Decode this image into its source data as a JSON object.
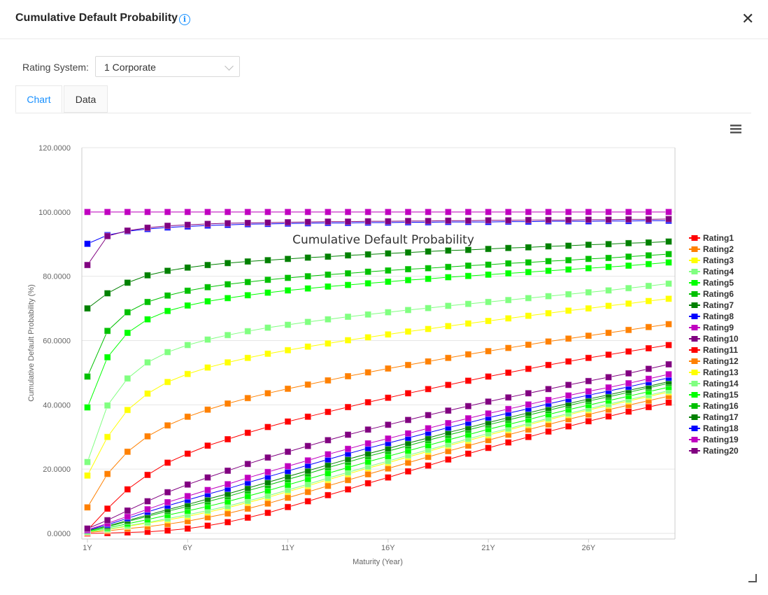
{
  "header": {
    "title": "Cumulative Default Probability",
    "info_icon": "info-circle-icon",
    "close_icon": "close-icon"
  },
  "filter": {
    "label": "Rating System:",
    "selected": "1 Corporate"
  },
  "tabs": [
    {
      "label": "Chart",
      "active": true
    },
    {
      "label": "Data",
      "active": false
    }
  ],
  "chart_data": {
    "type": "line",
    "title": "Cumulative Default Probability",
    "xlabel": "Maturity (Year)",
    "ylabel": "Cumulative Default Probability (%)",
    "ylim": [
      0,
      120
    ],
    "yticks": [
      "0.0000",
      "20.0000",
      "40.0000",
      "60.0000",
      "80.0000",
      "100.0000",
      "120.0000"
    ],
    "ytick_values": [
      0,
      20,
      40,
      60,
      80,
      100,
      120
    ],
    "x": [
      "1Y",
      "2Y",
      "3Y",
      "4Y",
      "5Y",
      "6Y",
      "7Y",
      "8Y",
      "9Y",
      "10Y",
      "11Y",
      "12Y",
      "13Y",
      "14Y",
      "15Y",
      "16Y",
      "17Y",
      "18Y",
      "19Y",
      "20Y",
      "21Y",
      "22Y",
      "23Y",
      "24Y",
      "25Y",
      "26Y",
      "27Y",
      "28Y",
      "29Y",
      "30Y"
    ],
    "xticks": [
      "1Y",
      "6Y",
      "11Y",
      "16Y",
      "21Y",
      "26Y"
    ],
    "grid": "horizontal",
    "legend": "right",
    "marker": "square",
    "series": [
      {
        "name": "Rating1",
        "color": "#ff0000",
        "values": [
          1.0,
          7.7,
          13.7,
          18.2,
          22.0,
          24.8,
          27.3,
          29.3,
          31.3,
          33.1,
          34.8,
          36.3,
          37.8,
          39.3,
          40.8,
          42.2,
          43.6,
          44.9,
          46.2,
          47.5,
          48.8,
          50.0,
          51.2,
          52.4,
          53.5,
          54.6,
          55.6,
          56.6,
          57.6,
          58.6
        ]
      },
      {
        "name": "Rating2",
        "color": "#ff8000",
        "values": [
          8.1,
          18.5,
          25.4,
          30.2,
          33.6,
          36.3,
          38.5,
          40.4,
          42.1,
          43.6,
          45.0,
          46.3,
          47.6,
          48.9,
          50.1,
          51.3,
          52.4,
          53.5,
          54.6,
          55.7,
          56.7,
          57.7,
          58.7,
          59.7,
          60.6,
          61.5,
          62.4,
          63.3,
          64.2,
          65.1
        ]
      },
      {
        "name": "Rating3",
        "color": "#ffff00",
        "values": [
          18.0,
          30.0,
          38.4,
          43.5,
          47.1,
          49.6,
          51.6,
          53.2,
          54.6,
          55.9,
          57.0,
          58.1,
          59.1,
          60.1,
          61.0,
          61.9,
          62.8,
          63.6,
          64.5,
          65.3,
          66.1,
          66.9,
          67.7,
          68.5,
          69.3,
          70.0,
          70.8,
          71.5,
          72.3,
          73.0
        ]
      },
      {
        "name": "Rating4",
        "color": "#80ff80",
        "values": [
          22.2,
          39.8,
          48.2,
          53.2,
          56.4,
          58.6,
          60.3,
          61.7,
          62.9,
          64.0,
          64.9,
          65.8,
          66.6,
          67.4,
          68.1,
          68.8,
          69.5,
          70.1,
          70.8,
          71.4,
          72.0,
          72.6,
          73.2,
          73.8,
          74.4,
          75.0,
          75.6,
          76.3,
          77.0,
          77.7
        ]
      },
      {
        "name": "Rating5",
        "color": "#00ff00",
        "values": [
          39.2,
          54.8,
          62.4,
          66.6,
          69.2,
          70.9,
          72.2,
          73.2,
          74.1,
          74.9,
          75.6,
          76.2,
          76.8,
          77.3,
          77.8,
          78.3,
          78.8,
          79.2,
          79.7,
          80.1,
          80.5,
          80.9,
          81.3,
          81.7,
          82.1,
          82.5,
          82.9,
          83.3,
          83.8,
          84.3
        ]
      },
      {
        "name": "Rating6",
        "color": "#00c000",
        "values": [
          48.8,
          63.0,
          68.8,
          72.0,
          74.0,
          75.5,
          76.6,
          77.5,
          78.2,
          78.9,
          79.5,
          80.0,
          80.5,
          80.9,
          81.4,
          81.8,
          82.2,
          82.5,
          82.9,
          83.3,
          83.6,
          84.0,
          84.3,
          84.7,
          85.0,
          85.4,
          85.7,
          86.1,
          86.5,
          86.9
        ]
      },
      {
        "name": "Rating7",
        "color": "#008000",
        "values": [
          70.0,
          74.7,
          78.0,
          80.3,
          81.7,
          82.7,
          83.5,
          84.1,
          84.6,
          85.0,
          85.4,
          85.8,
          86.1,
          86.5,
          86.8,
          87.1,
          87.4,
          87.7,
          88.0,
          88.2,
          88.5,
          88.8,
          89.0,
          89.3,
          89.5,
          89.8,
          90.0,
          90.3,
          90.5,
          90.8
        ]
      },
      {
        "name": "Rating8",
        "color": "#0000ff",
        "values": [
          90.1,
          92.8,
          94.0,
          94.7,
          95.2,
          95.5,
          95.8,
          96.0,
          96.2,
          96.3,
          96.4,
          96.5,
          96.6,
          96.6,
          96.7,
          96.7,
          96.8,
          96.8,
          96.9,
          96.9,
          96.9,
          97.0,
          97.0,
          97.1,
          97.1,
          97.1,
          97.2,
          97.2,
          97.3,
          97.3
        ]
      },
      {
        "name": "Rating9",
        "color": "#c000c0",
        "values": [
          100,
          100,
          100,
          100,
          100,
          100,
          100,
          100,
          100,
          100,
          100,
          100,
          100,
          100,
          100,
          100,
          100,
          100,
          100,
          100,
          100,
          100,
          100,
          100,
          100,
          100,
          100,
          100,
          100,
          100
        ]
      },
      {
        "name": "Rating10",
        "color": "#800080",
        "values": [
          83.5,
          92.5,
          94.2,
          95.1,
          95.7,
          96.0,
          96.3,
          96.5,
          96.6,
          96.7,
          96.8,
          96.9,
          97.0,
          97.0,
          97.1,
          97.1,
          97.2,
          97.2,
          97.3,
          97.3,
          97.4,
          97.4,
          97.5,
          97.5,
          97.5,
          97.6,
          97.6,
          97.7,
          97.7,
          97.8
        ]
      },
      {
        "name": "Rating11",
        "color": "#ff0000",
        "values": [
          0.0,
          0.1,
          0.3,
          0.5,
          0.9,
          1.5,
          2.4,
          3.5,
          4.9,
          6.4,
          8.2,
          10.0,
          11.9,
          13.7,
          15.6,
          17.4,
          19.3,
          21.1,
          23.0,
          24.8,
          26.6,
          28.3,
          30.0,
          31.7,
          33.3,
          34.9,
          36.4,
          37.9,
          39.3,
          40.7
        ]
      },
      {
        "name": "Rating12",
        "color": "#ff8000",
        "values": [
          0.3,
          0.8,
          1.5,
          2.1,
          2.9,
          3.8,
          5.0,
          6.2,
          7.7,
          9.3,
          11.1,
          12.9,
          14.8,
          16.6,
          18.4,
          20.2,
          22.0,
          23.8,
          25.6,
          27.3,
          29.0,
          30.7,
          32.3,
          33.9,
          35.5,
          37.0,
          38.5,
          39.9,
          41.3,
          42.7
        ]
      },
      {
        "name": "Rating13",
        "color": "#ffff00",
        "values": [
          0.4,
          1.2,
          2.2,
          3.2,
          4.2,
          5.3,
          6.6,
          8.0,
          9.6,
          11.2,
          13.0,
          14.8,
          16.7,
          18.5,
          20.3,
          22.0,
          23.8,
          25.5,
          27.3,
          28.9,
          30.6,
          32.2,
          33.8,
          35.4,
          36.9,
          38.4,
          39.8,
          41.2,
          42.6,
          44.0
        ]
      },
      {
        "name": "Rating14",
        "color": "#80ff80",
        "values": [
          0.5,
          1.3,
          2.4,
          3.4,
          4.6,
          5.8,
          7.1,
          8.5,
          10.1,
          11.7,
          13.5,
          15.3,
          17.2,
          19.0,
          20.8,
          22.5,
          24.3,
          26.0,
          27.7,
          29.4,
          31.1,
          32.6,
          34.2,
          35.8,
          37.3,
          38.8,
          40.2,
          41.6,
          43.0,
          44.4
        ]
      },
      {
        "name": "Rating15",
        "color": "#00ff00",
        "values": [
          0.6,
          1.7,
          3.0,
          4.3,
          5.7,
          7.0,
          8.4,
          9.9,
          11.6,
          13.3,
          15.1,
          16.9,
          18.7,
          20.5,
          22.3,
          24.0,
          25.7,
          27.4,
          29.1,
          30.7,
          32.4,
          33.9,
          35.4,
          37.0,
          38.5,
          39.9,
          41.3,
          42.7,
          44.1,
          45.5
        ]
      },
      {
        "name": "Rating16",
        "color": "#00c000",
        "values": [
          0.8,
          2.1,
          3.7,
          5.3,
          6.9,
          8.4,
          9.9,
          11.5,
          13.3,
          15.0,
          16.8,
          18.6,
          20.5,
          22.2,
          24.0,
          25.6,
          27.3,
          29.0,
          30.6,
          32.2,
          33.8,
          35.3,
          36.8,
          38.3,
          39.8,
          41.2,
          42.5,
          43.9,
          45.3,
          46.7
        ]
      },
      {
        "name": "Rating17",
        "color": "#008000",
        "values": [
          0.8,
          2.3,
          4.0,
          5.7,
          7.4,
          9.0,
          10.7,
          12.3,
          14.1,
          15.9,
          17.7,
          19.5,
          21.3,
          23.1,
          24.8,
          26.4,
          28.1,
          29.7,
          31.4,
          32.9,
          34.5,
          36.0,
          37.5,
          39.0,
          40.4,
          41.8,
          43.1,
          44.5,
          45.8,
          47.2
        ]
      },
      {
        "name": "Rating18",
        "color": "#0000ff",
        "values": [
          1.0,
          2.7,
          4.7,
          6.7,
          8.6,
          10.4,
          12.2,
          13.9,
          15.8,
          17.6,
          19.4,
          21.2,
          23.0,
          24.8,
          26.5,
          28.1,
          29.7,
          31.3,
          32.9,
          34.4,
          36.0,
          37.4,
          38.8,
          40.3,
          41.7,
          43.0,
          44.3,
          45.6,
          47.0,
          48.4
        ]
      },
      {
        "name": "Rating19",
        "color": "#c000c0",
        "values": [
          1.1,
          3.1,
          5.3,
          7.5,
          9.7,
          11.6,
          13.5,
          15.3,
          17.3,
          19.1,
          20.9,
          22.7,
          24.6,
          26.3,
          28.0,
          29.5,
          31.1,
          32.7,
          34.3,
          35.8,
          37.3,
          38.7,
          40.1,
          41.5,
          42.9,
          44.2,
          45.4,
          46.7,
          48.1,
          49.5
        ]
      },
      {
        "name": "Rating20",
        "color": "#800080",
        "values": [
          1.5,
          4.1,
          7.1,
          10.0,
          12.8,
          15.2,
          17.4,
          19.5,
          21.6,
          23.6,
          25.4,
          27.2,
          29.0,
          30.7,
          32.3,
          33.8,
          35.3,
          36.8,
          38.2,
          39.6,
          41.0,
          42.3,
          43.6,
          44.9,
          46.2,
          47.4,
          48.6,
          49.8,
          51.2,
          52.6
        ]
      }
    ]
  },
  "chart_menu_icon": "hamburger-menu-icon",
  "resize_icon": "resize-handle-icon"
}
